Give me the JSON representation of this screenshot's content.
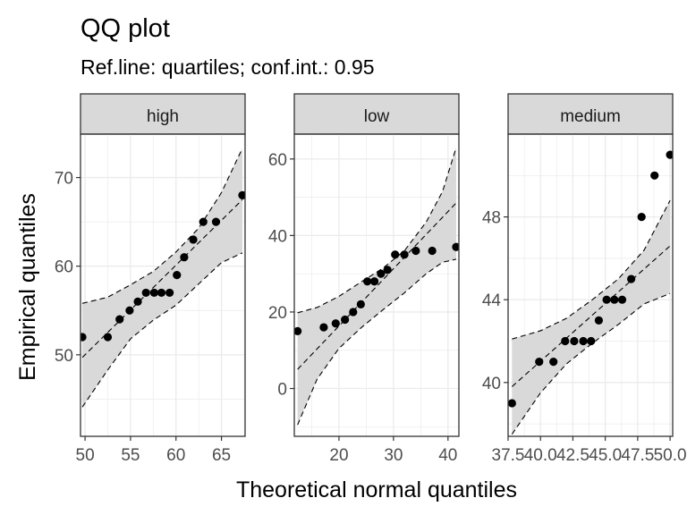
{
  "chart_data": {
    "type": "scatter",
    "title": "QQ plot",
    "subtitle": "Ref.line: quartiles; conf.int.: 0.95",
    "xlabel": "Theoretical normal quantiles",
    "ylabel": "Empirical quantiles",
    "grid": true,
    "legend": "none",
    "colors": {
      "point": "#000000",
      "band": "#d9d9d9",
      "strip": "#d9d9d9",
      "grid": "#ebebeb",
      "border": "#333333",
      "tick_label": "#4d4d4d"
    },
    "panels": [
      {
        "name": "high",
        "xlim": [
          49.5,
          67.6
        ],
        "ylim": [
          40.8,
          74.9
        ],
        "xticks": [
          50,
          55,
          60,
          65
        ],
        "xtick_labels": [
          "50",
          "55",
          "60",
          "65"
        ],
        "yticks": [
          50,
          60,
          70
        ],
        "ytick_labels": [
          "50",
          "60",
          "70"
        ],
        "points": [
          {
            "x": 49.7,
            "y": 52
          },
          {
            "x": 52.5,
            "y": 52
          },
          {
            "x": 53.8,
            "y": 54
          },
          {
            "x": 54.9,
            "y": 55
          },
          {
            "x": 55.8,
            "y": 56
          },
          {
            "x": 56.7,
            "y": 57
          },
          {
            "x": 57.6,
            "y": 57
          },
          {
            "x": 58.4,
            "y": 57
          },
          {
            "x": 59.3,
            "y": 57
          },
          {
            "x": 60.1,
            "y": 59
          },
          {
            "x": 60.9,
            "y": 61
          },
          {
            "x": 61.9,
            "y": 63
          },
          {
            "x": 63.0,
            "y": 65
          },
          {
            "x": 64.4,
            "y": 65
          },
          {
            "x": 67.3,
            "y": 68
          }
        ],
        "ref_line": [
          [
            49.7,
            49.7
          ],
          [
            67.3,
            67.5
          ]
        ],
        "band_upper": [
          [
            49.7,
            55.8
          ],
          [
            52.5,
            56.5
          ],
          [
            55,
            57.9
          ],
          [
            57.5,
            59.4
          ],
          [
            60,
            61.6
          ],
          [
            62.5,
            64.3
          ],
          [
            65,
            68.3
          ],
          [
            67.3,
            73.3
          ]
        ],
        "band_lower": [
          [
            49.7,
            44.1
          ],
          [
            52.5,
            48.3
          ],
          [
            55,
            51.8
          ],
          [
            57.5,
            53.9
          ],
          [
            60,
            55.6
          ],
          [
            62.5,
            58.0
          ],
          [
            65,
            60.4
          ],
          [
            67.3,
            61.5
          ]
        ]
      },
      {
        "name": "low",
        "xlim": [
          11.8,
          42.0
        ],
        "ylim": [
          -12.5,
          66.5
        ],
        "xticks": [
          20,
          30,
          40
        ],
        "xtick_labels": [
          "20",
          "30",
          "40"
        ],
        "yticks": [
          0,
          20,
          40,
          60
        ],
        "ytick_labels": [
          "0",
          "20",
          "40",
          "60"
        ],
        "points": [
          {
            "x": 12.4,
            "y": 15
          },
          {
            "x": 17.2,
            "y": 16
          },
          {
            "x": 19.4,
            "y": 17
          },
          {
            "x": 21.1,
            "y": 18
          },
          {
            "x": 22.6,
            "y": 20
          },
          {
            "x": 24.0,
            "y": 22
          },
          {
            "x": 25.2,
            "y": 28
          },
          {
            "x": 26.5,
            "y": 28
          },
          {
            "x": 27.7,
            "y": 30
          },
          {
            "x": 28.9,
            "y": 31
          },
          {
            "x": 30.3,
            "y": 35
          },
          {
            "x": 32.0,
            "y": 35
          },
          {
            "x": 34.1,
            "y": 36
          },
          {
            "x": 37.1,
            "y": 36
          },
          {
            "x": 41.5,
            "y": 37
          }
        ],
        "ref_line": [
          [
            12.4,
            5
          ],
          [
            41.5,
            48.5
          ]
        ],
        "band_upper": [
          [
            12.4,
            19.8
          ],
          [
            16,
            21.2
          ],
          [
            20,
            24.1
          ],
          [
            24,
            27.8
          ],
          [
            28,
            31.4
          ],
          [
            32,
            36.0
          ],
          [
            36,
            43.5
          ],
          [
            39,
            51.5
          ],
          [
            41.5,
            63
          ]
        ],
        "band_lower": [
          [
            12.4,
            -9.5
          ],
          [
            16,
            2.5
          ],
          [
            20,
            10.5
          ],
          [
            24,
            15.8
          ],
          [
            28,
            20.5
          ],
          [
            32,
            25.0
          ],
          [
            36,
            30.0
          ],
          [
            39,
            33.0
          ],
          [
            41.5,
            33.8
          ]
        ]
      },
      {
        "name": "medium",
        "xlim": [
          37.5,
          50.2
        ],
        "ylim": [
          37.4,
          52.0
        ],
        "xticks": [
          37.5,
          40.0,
          42.5,
          45.0,
          47.5,
          50.0
        ],
        "xtick_labels": [
          "37.5",
          "40.0",
          "42.5",
          "45.0",
          "47.5",
          "50.0"
        ],
        "yticks": [
          40,
          44,
          48
        ],
        "ytick_labels": [
          "40",
          "44",
          "48"
        ],
        "points": [
          {
            "x": 37.8,
            "y": 39
          },
          {
            "x": 39.9,
            "y": 41
          },
          {
            "x": 41.0,
            "y": 41
          },
          {
            "x": 41.9,
            "y": 42
          },
          {
            "x": 42.6,
            "y": 42
          },
          {
            "x": 43.3,
            "y": 42
          },
          {
            "x": 43.9,
            "y": 42
          },
          {
            "x": 44.5,
            "y": 43
          },
          {
            "x": 45.1,
            "y": 44
          },
          {
            "x": 45.7,
            "y": 44
          },
          {
            "x": 46.3,
            "y": 44
          },
          {
            "x": 47.0,
            "y": 45
          },
          {
            "x": 47.8,
            "y": 48
          },
          {
            "x": 48.8,
            "y": 50
          },
          {
            "x": 50.0,
            "y": 51
          }
        ],
        "ref_line": [
          [
            37.8,
            39.8
          ],
          [
            50.0,
            46.6
          ]
        ],
        "band_upper": [
          [
            37.8,
            42.1
          ],
          [
            40,
            42.5
          ],
          [
            42,
            43.1
          ],
          [
            44,
            44.0
          ],
          [
            46,
            45.0
          ],
          [
            48,
            46.4
          ],
          [
            50,
            48.8
          ]
        ],
        "band_lower": [
          [
            37.8,
            37.5
          ],
          [
            40,
            39.5
          ],
          [
            42,
            40.9
          ],
          [
            44,
            41.9
          ],
          [
            46,
            42.8
          ],
          [
            48,
            43.8
          ],
          [
            50,
            44.3
          ]
        ]
      }
    ]
  }
}
